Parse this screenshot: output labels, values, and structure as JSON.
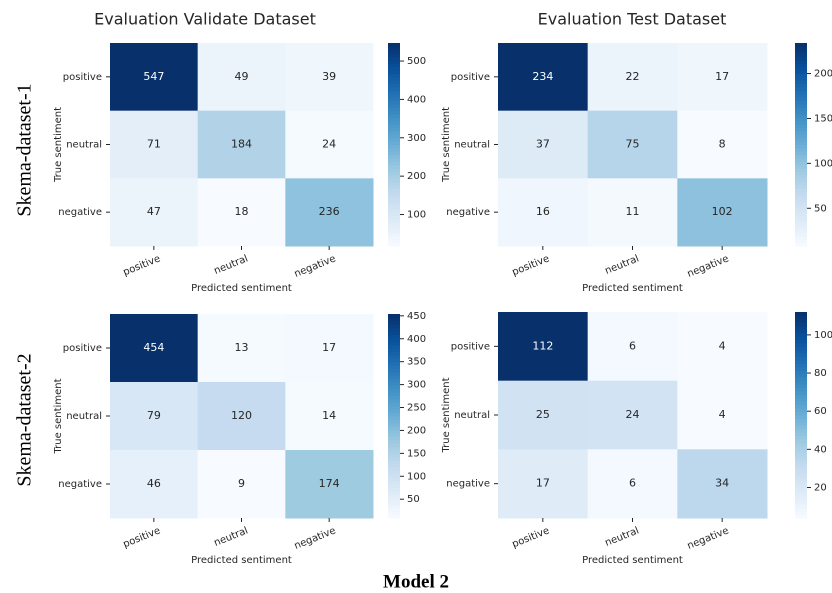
{
  "figure": {
    "caption": "Model 2",
    "columns": [
      "Evaluation Validate Dataset",
      "Evaluation Test Dataset"
    ],
    "rows": [
      "Skema-dataset-1",
      "Skema-dataset-2"
    ]
  },
  "chart_data": [
    {
      "type": "heatmap",
      "xlabel": "Predicted sentiment",
      "ylabel": "True sentiment",
      "x_categories": [
        "positive",
        "neutral",
        "negative"
      ],
      "y_categories": [
        "positive",
        "neutral",
        "negative"
      ],
      "values": [
        [
          547,
          49,
          39
        ],
        [
          71,
          184,
          24
        ],
        [
          47,
          18,
          236
        ]
      ],
      "zlim": [
        18,
        547
      ],
      "zticks": [
        100,
        200,
        300,
        400,
        500
      ],
      "colorscale": [
        "#f7fbff",
        "#deebf7",
        "#c6dbef",
        "#9ecae1",
        "#6baed6",
        "#4292c6",
        "#2171b5",
        "#08519c",
        "#08306b"
      ]
    },
    {
      "type": "heatmap",
      "xlabel": "Predicted sentiment",
      "ylabel": "True sentiment",
      "x_categories": [
        "positive",
        "neutral",
        "negative"
      ],
      "y_categories": [
        "positive",
        "neutral",
        "negative"
      ],
      "values": [
        [
          234,
          22,
          17
        ],
        [
          37,
          75,
          8
        ],
        [
          16,
          11,
          102
        ]
      ],
      "zlim": [
        8,
        234
      ],
      "zticks": [
        50,
        100,
        150,
        200
      ],
      "colorscale": [
        "#f7fbff",
        "#deebf7",
        "#c6dbef",
        "#9ecae1",
        "#6baed6",
        "#4292c6",
        "#2171b5",
        "#08519c",
        "#08306b"
      ]
    },
    {
      "type": "heatmap",
      "xlabel": "Predicted sentiment",
      "ylabel": "True sentiment",
      "x_categories": [
        "positive",
        "neutral",
        "negative"
      ],
      "y_categories": [
        "positive",
        "neutral",
        "negative"
      ],
      "values": [
        [
          454,
          13,
          17
        ],
        [
          79,
          120,
          14
        ],
        [
          46,
          9,
          174
        ]
      ],
      "zlim": [
        9,
        454
      ],
      "zticks": [
        50,
        100,
        150,
        200,
        250,
        300,
        350,
        400,
        450
      ],
      "colorscale": [
        "#f7fbff",
        "#deebf7",
        "#c6dbef",
        "#9ecae1",
        "#6baed6",
        "#4292c6",
        "#2171b5",
        "#08519c",
        "#08306b"
      ]
    },
    {
      "type": "heatmap",
      "xlabel": "Predicted sentiment",
      "ylabel": "True sentiment",
      "x_categories": [
        "positive",
        "neutral",
        "negative"
      ],
      "y_categories": [
        "positive",
        "neutral",
        "negative"
      ],
      "values": [
        [
          112,
          6,
          4
        ],
        [
          25,
          24,
          4
        ],
        [
          17,
          6,
          34
        ]
      ],
      "zlim": [
        4,
        112
      ],
      "zticks": [
        20,
        40,
        60,
        80,
        100
      ],
      "colorscale": [
        "#f7fbff",
        "#deebf7",
        "#c6dbef",
        "#9ecae1",
        "#6baed6",
        "#4292c6",
        "#2171b5",
        "#08519c",
        "#08306b"
      ]
    }
  ]
}
